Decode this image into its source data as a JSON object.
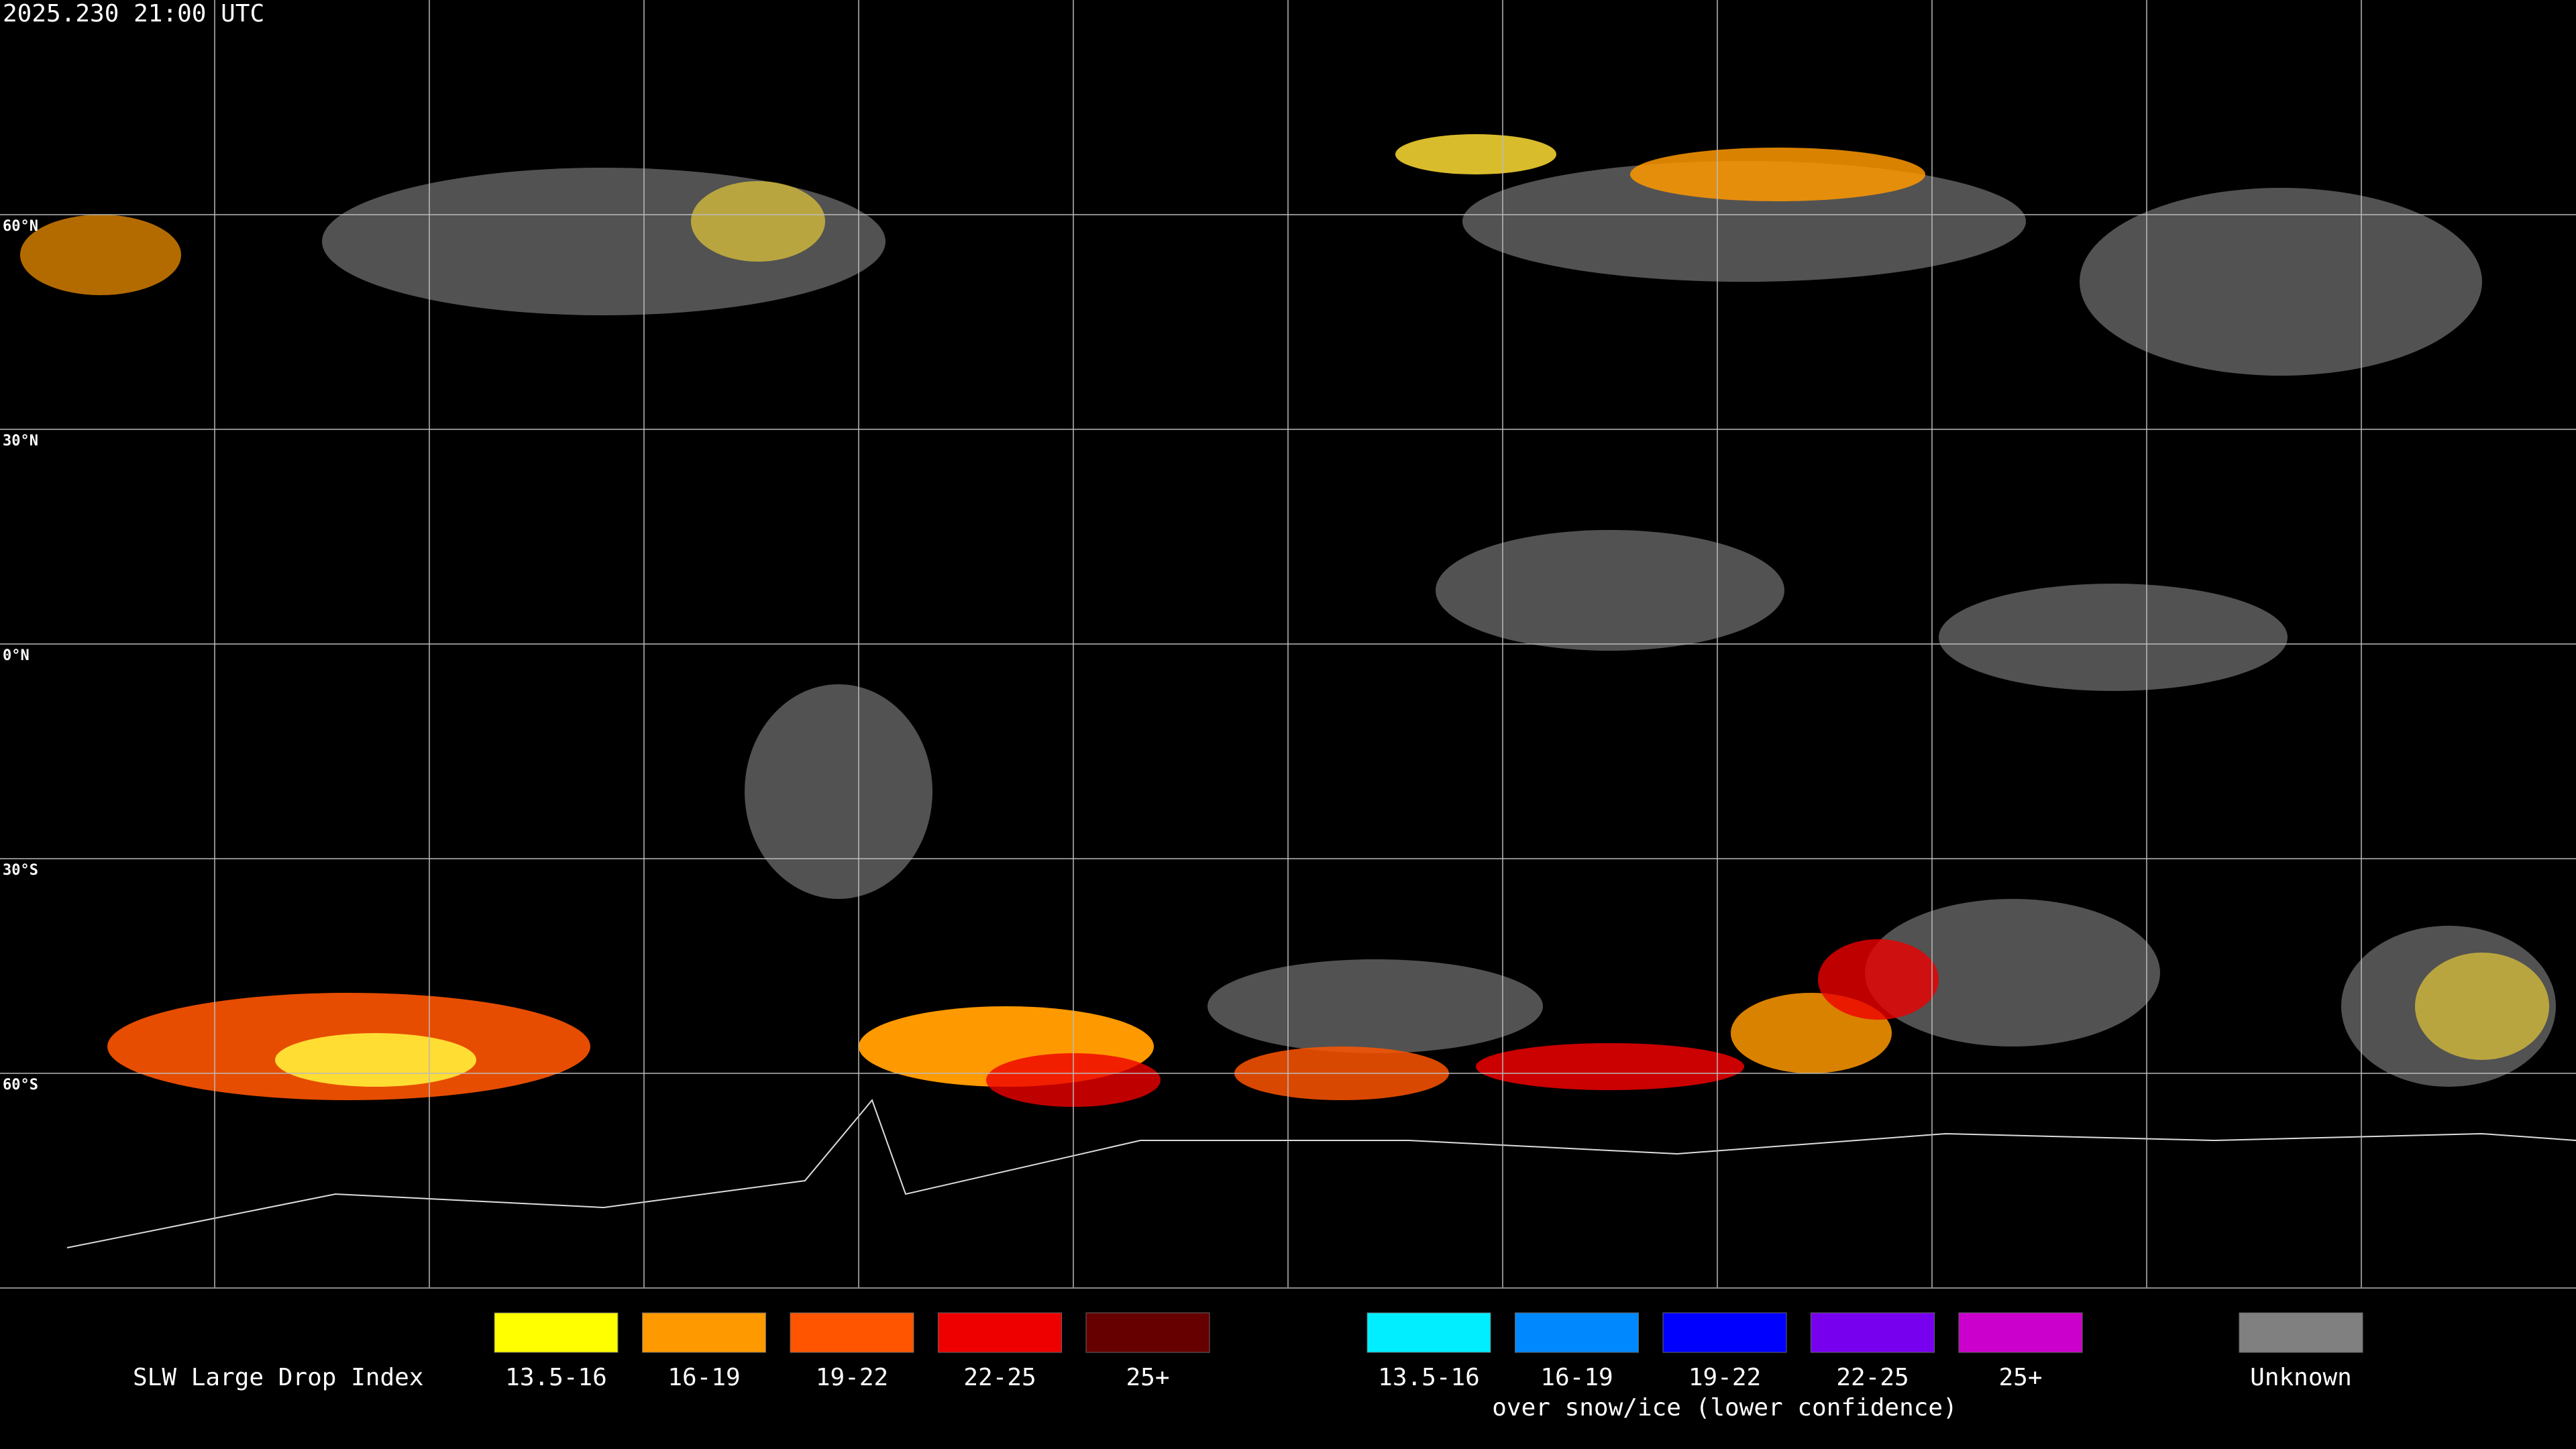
{
  "header": {
    "timestamp": "2025.230 21:00 UTC"
  },
  "map": {
    "latitude_labels": [
      "60°N",
      "30°N",
      "0°N",
      "30°S",
      "60°S"
    ]
  },
  "legend": {
    "title": "SLW Large Drop Index",
    "groups": [
      {
        "items": [
          {
            "label": "13.5-16",
            "color": "#ffff00"
          },
          {
            "label": "16-19",
            "color": "#ff9900"
          },
          {
            "label": "19-22",
            "color": "#ff5500"
          },
          {
            "label": "22-25",
            "color": "#ee0000"
          },
          {
            "label": "25+",
            "color": "#660000"
          }
        ]
      },
      {
        "note": "over snow/ice (lower confidence)",
        "items": [
          {
            "label": "13.5-16",
            "color": "#00eeff"
          },
          {
            "label": "16-19",
            "color": "#0088ff"
          },
          {
            "label": "19-22",
            "color": "#0000ff"
          },
          {
            "label": "22-25",
            "color": "#7700ee"
          },
          {
            "label": "25+",
            "color": "#cc00cc"
          }
        ]
      },
      {
        "items": [
          {
            "label": "Unknown",
            "color": "#808080"
          }
        ]
      }
    ]
  }
}
